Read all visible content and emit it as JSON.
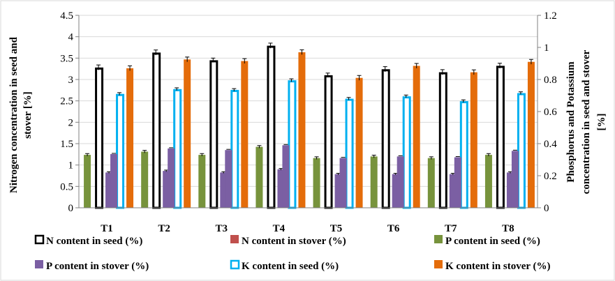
{
  "chart_data": {
    "type": "bar",
    "categories": [
      "T1",
      "T2",
      "T3",
      "T4",
      "T5",
      "T6",
      "T7",
      "T8"
    ],
    "ylabel_left": [
      "Nitrogen concentration in seed and",
      "stover [%]"
    ],
    "ylabel_right": [
      "Phosphorus and Potassium",
      "concentration in seed and stover",
      "[%]"
    ],
    "ylim_left": [
      0,
      4.5
    ],
    "ylim_right": [
      0,
      1.2
    ],
    "yticks_left": [
      "0",
      "0.5",
      "1",
      "1.5",
      "2",
      "2.5",
      "3",
      "3.5",
      "4",
      "4.5"
    ],
    "yticks_right": [
      "0",
      "0.2",
      "0.4",
      "0.6",
      "0.8",
      "1",
      "1.2"
    ],
    "legend_position": "bottom",
    "grid": true,
    "series": [
      {
        "name": "N content in seed (%)",
        "axis": "left",
        "style": "outline",
        "color": "#000000",
        "values": [
          3.28,
          3.63,
          3.45,
          3.79,
          3.1,
          3.24,
          3.17,
          3.32
        ],
        "errors": [
          0.06,
          0.06,
          0.05,
          0.06,
          0.05,
          0.06,
          0.06,
          0.06
        ]
      },
      {
        "name": "N content in stover (%)",
        "axis": "left",
        "style": "fill",
        "color": "#C0504D",
        "values": [
          0,
          0,
          0,
          0,
          0,
          0,
          0,
          0
        ],
        "errors": [
          0,
          0,
          0,
          0,
          0,
          0,
          0,
          0
        ]
      },
      {
        "name": "P content in seed (%)",
        "axis": "right",
        "style": "fill",
        "color": "#77933C",
        "values": [
          0.33,
          0.35,
          0.33,
          0.38,
          0.31,
          0.32,
          0.31,
          0.33
        ],
        "errors": [
          0.008,
          0.008,
          0.008,
          0.008,
          0.008,
          0.008,
          0.008,
          0.008
        ]
      },
      {
        "name": "P content in stover (%)",
        "axis": "right",
        "style": "fill",
        "color": "#7B5FA3",
        "values": [
          0.22,
          0.23,
          0.22,
          0.24,
          0.21,
          0.21,
          0.21,
          0.22
        ],
        "errors": [
          0.005,
          0.005,
          0.005,
          0.005,
          0.005,
          0.005,
          0.005,
          0.005
        ]
      },
      {
        "name": "K content in seed (%)",
        "axis": "right",
        "style": "outline",
        "color": "#00B0F0",
        "values": [
          0.71,
          0.74,
          0.735,
          0.795,
          0.68,
          0.695,
          0.665,
          0.715
        ],
        "errors": [
          0.008,
          0.008,
          0.008,
          0.009,
          0.008,
          0.008,
          0.008,
          0.008
        ]
      },
      {
        "name": "K content in stover (%)",
        "axis": "right",
        "style": "fill",
        "color": "#E46C0A",
        "values": [
          0.87,
          0.925,
          0.915,
          0.97,
          0.81,
          0.885,
          0.845,
          0.91
        ],
        "errors": [
          0.015,
          0.015,
          0.015,
          0.015,
          0.015,
          0.015,
          0.015,
          0.015
        ]
      }
    ],
    "overlay_series": [
      {
        "name": "P content in stover (%)",
        "axis": "right",
        "color": "#7B5FA3",
        "values": [
          0.335,
          0.37,
          0.36,
          0.39,
          0.31,
          0.32,
          0.315,
          0.355
        ]
      }
    ]
  }
}
